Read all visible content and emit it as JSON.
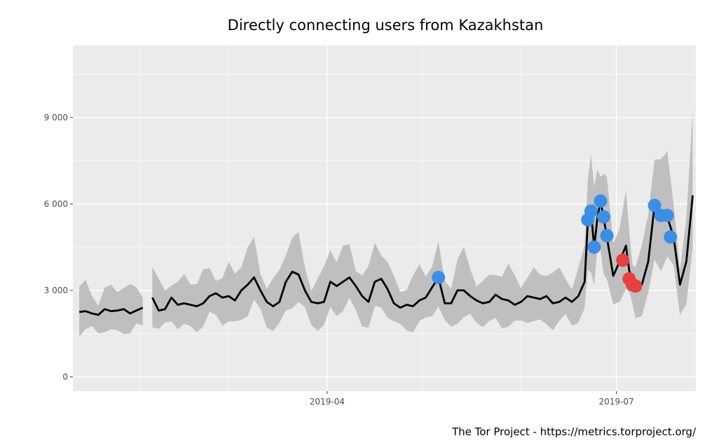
{
  "chart_data": {
    "type": "line",
    "title": "Directly connecting users from Kazakhstan",
    "caption": "The Tor Project - https://metrics.torproject.org/",
    "xlabel": "",
    "ylabel": "",
    "x_range": [
      "2019-01-11",
      "2019-07-26"
    ],
    "ylim": [
      -500,
      11500
    ],
    "y_ticks": [
      {
        "value": 0,
        "label": "0"
      },
      {
        "value": 3000,
        "label": "3 000"
      },
      {
        "value": 6000,
        "label": "6 000"
      },
      {
        "value": 9000,
        "label": "9 000"
      }
    ],
    "x_ticks": [
      {
        "value": "2019-04-01",
        "label": "2019-04"
      },
      {
        "value": "2019-07-01",
        "label": "2019-07"
      }
    ],
    "grid": true,
    "series": [
      {
        "values": [
          [
            "2019-01-13",
            2250
          ],
          [
            "2019-01-15",
            2280
          ],
          [
            "2019-01-17",
            2200
          ],
          [
            "2019-01-19",
            2150
          ],
          [
            "2019-01-21",
            2350
          ],
          [
            "2019-01-23",
            2280
          ],
          [
            "2019-01-25",
            2300
          ],
          [
            "2019-01-27",
            2350
          ],
          [
            "2019-01-29",
            2200
          ],
          [
            "2019-01-31",
            2300
          ],
          [
            "2019-02-02",
            2400
          ],
          [
            "2019-02-05",
            2750
          ],
          [
            "2019-02-07",
            2300
          ],
          [
            "2019-02-09",
            2350
          ],
          [
            "2019-02-11",
            2750
          ],
          [
            "2019-02-13",
            2500
          ],
          [
            "2019-02-15",
            2550
          ],
          [
            "2019-02-17",
            2500
          ],
          [
            "2019-02-19",
            2450
          ],
          [
            "2019-02-21",
            2550
          ],
          [
            "2019-02-23",
            2800
          ],
          [
            "2019-02-25",
            2900
          ],
          [
            "2019-02-27",
            2750
          ],
          [
            "2019-03-01",
            2800
          ],
          [
            "2019-03-03",
            2650
          ],
          [
            "2019-03-05",
            3000
          ],
          [
            "2019-03-07",
            3200
          ],
          [
            "2019-03-09",
            3450
          ],
          [
            "2019-03-11",
            3000
          ],
          [
            "2019-03-13",
            2600
          ],
          [
            "2019-03-15",
            2450
          ],
          [
            "2019-03-17",
            2600
          ],
          [
            "2019-03-19",
            3300
          ],
          [
            "2019-03-21",
            3650
          ],
          [
            "2019-03-23",
            3550
          ],
          [
            "2019-03-25",
            3000
          ],
          [
            "2019-03-27",
            2600
          ],
          [
            "2019-03-29",
            2550
          ],
          [
            "2019-03-31",
            2600
          ],
          [
            "2019-04-02",
            3300
          ],
          [
            "2019-04-04",
            3150
          ],
          [
            "2019-04-06",
            3300
          ],
          [
            "2019-04-08",
            3450
          ],
          [
            "2019-04-10",
            3150
          ],
          [
            "2019-04-12",
            2800
          ],
          [
            "2019-04-14",
            2600
          ],
          [
            "2019-04-16",
            3300
          ],
          [
            "2019-04-18",
            3400
          ],
          [
            "2019-04-20",
            3050
          ],
          [
            "2019-04-22",
            2550
          ],
          [
            "2019-04-24",
            2400
          ],
          [
            "2019-04-26",
            2500
          ],
          [
            "2019-04-28",
            2450
          ],
          [
            "2019-04-30",
            2650
          ],
          [
            "2019-05-02",
            2750
          ],
          [
            "2019-05-04",
            3100
          ],
          [
            "2019-05-06",
            3450
          ],
          [
            "2019-05-08",
            2550
          ],
          [
            "2019-05-10",
            2550
          ],
          [
            "2019-05-12",
            3000
          ],
          [
            "2019-05-14",
            3000
          ],
          [
            "2019-05-16",
            2800
          ],
          [
            "2019-05-18",
            2650
          ],
          [
            "2019-05-20",
            2550
          ],
          [
            "2019-05-22",
            2600
          ],
          [
            "2019-05-24",
            2850
          ],
          [
            "2019-05-26",
            2700
          ],
          [
            "2019-05-28",
            2650
          ],
          [
            "2019-05-30",
            2500
          ],
          [
            "2019-06-01",
            2600
          ],
          [
            "2019-06-03",
            2800
          ],
          [
            "2019-06-05",
            2750
          ],
          [
            "2019-06-07",
            2700
          ],
          [
            "2019-06-09",
            2800
          ],
          [
            "2019-06-11",
            2550
          ],
          [
            "2019-06-13",
            2600
          ],
          [
            "2019-06-15",
            2750
          ],
          [
            "2019-06-17",
            2600
          ],
          [
            "2019-06-19",
            2800
          ],
          [
            "2019-06-21",
            3300
          ],
          [
            "2019-06-22",
            5400
          ],
          [
            "2019-06-23",
            5750
          ],
          [
            "2019-06-24",
            4500
          ],
          [
            "2019-06-25",
            5500
          ],
          [
            "2019-06-26",
            6100
          ],
          [
            "2019-06-27",
            5500
          ],
          [
            "2019-06-28",
            4850
          ],
          [
            "2019-06-30",
            3500
          ],
          [
            "2019-07-02",
            4000
          ],
          [
            "2019-07-04",
            4550
          ],
          [
            "2019-07-05",
            3700
          ],
          [
            "2019-07-06",
            3350
          ],
          [
            "2019-07-07",
            3150
          ],
          [
            "2019-07-09",
            3200
          ],
          [
            "2019-07-11",
            4000
          ],
          [
            "2019-07-13",
            5950
          ],
          [
            "2019-07-15",
            5600
          ],
          [
            "2019-07-17",
            5550
          ],
          [
            "2019-07-19",
            4850
          ],
          [
            "2019-07-21",
            3200
          ],
          [
            "2019-07-23",
            4000
          ],
          [
            "2019-07-25",
            6300
          ]
        ]
      }
    ],
    "anomalies_high": [
      [
        "2019-05-06",
        3450
      ],
      [
        "2019-06-22",
        5450
      ],
      [
        "2019-06-23",
        5750
      ],
      [
        "2019-06-24",
        4500
      ],
      [
        "2019-06-26",
        6100
      ],
      [
        "2019-06-27",
        5550
      ],
      [
        "2019-06-28",
        4900
      ],
      [
        "2019-07-13",
        5950
      ],
      [
        "2019-07-15",
        5600
      ],
      [
        "2019-07-17",
        5600
      ],
      [
        "2019-07-18",
        4850
      ]
    ],
    "anomalies_low": [
      [
        "2019-07-03",
        4050
      ],
      [
        "2019-07-05",
        3400
      ],
      [
        "2019-07-06",
        3200
      ],
      [
        "2019-07-07",
        3150
      ]
    ],
    "colors": {
      "panel": "#ebebeb",
      "grid": "#ffffff",
      "band": "#bfbfbf",
      "line": "#000000",
      "high_point": "#3b8ee6",
      "low_point": "#e84040"
    }
  }
}
